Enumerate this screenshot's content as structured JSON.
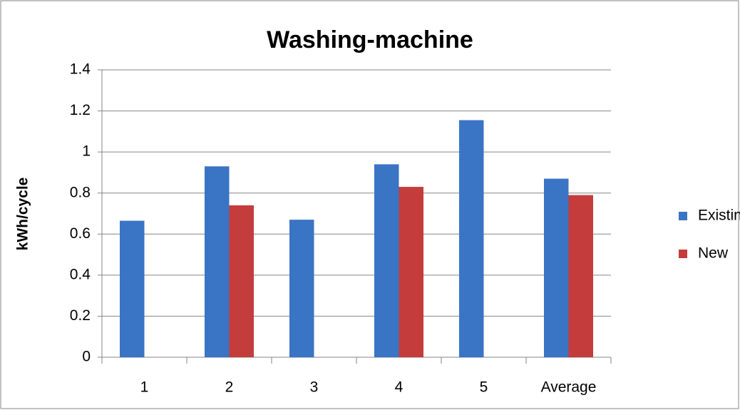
{
  "chart_data": {
    "type": "bar",
    "title": "Washing-machine",
    "y_label": "kWh/cycle",
    "categories": [
      "1",
      "2",
      "3",
      "4",
      "5",
      "Average"
    ],
    "series": [
      {
        "name": "Existing",
        "color": "#3a74c4",
        "values": [
          0.665,
          0.93,
          0.67,
          0.94,
          1.155,
          0.87
        ]
      },
      {
        "name": "New",
        "color": "#c43c3c",
        "values": [
          null,
          0.74,
          null,
          0.83,
          null,
          0.79
        ]
      }
    ],
    "ylim": [
      0,
      1.4
    ],
    "yticks": [
      0,
      0.2,
      0.4,
      0.6,
      0.8,
      1,
      1.2,
      1.4
    ],
    "grid": true,
    "legend": "right"
  }
}
